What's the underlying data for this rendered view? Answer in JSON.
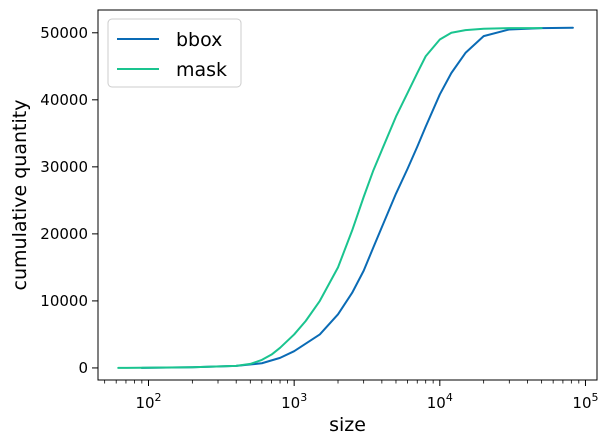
{
  "chart_data": {
    "type": "line",
    "xlabel": "size",
    "ylabel": "cumulative quantity",
    "xscale": "log",
    "xlim": [
      45,
      120000
    ],
    "ylim": [
      -1800,
      53400
    ],
    "grid": false,
    "legend_position": "top-left",
    "x_ticks": [
      {
        "value": 100,
        "base": "10",
        "exp": "2"
      },
      {
        "value": 1000,
        "base": "10",
        "exp": "3"
      },
      {
        "value": 10000,
        "base": "10",
        "exp": "4"
      },
      {
        "value": 100000,
        "base": "10",
        "exp": "5"
      }
    ],
    "y_ticks": [
      {
        "value": 0,
        "label": "0"
      },
      {
        "value": 10000,
        "label": "10000"
      },
      {
        "value": 20000,
        "label": "20000"
      },
      {
        "value": 30000,
        "label": "30000"
      },
      {
        "value": 40000,
        "label": "40000"
      },
      {
        "value": 50000,
        "label": "50000"
      }
    ],
    "series": [
      {
        "name": "bbox",
        "color": "#0a6bb5",
        "x": [
          90,
          200,
          400,
          600,
          800,
          1000,
          1500,
          2000,
          2500,
          3000,
          3500,
          4000,
          5000,
          6000,
          7000,
          8000,
          10000,
          12000,
          15000,
          20000,
          30000,
          50000,
          82000
        ],
        "y": [
          0,
          100,
          300,
          700,
          1500,
          2500,
          5000,
          8000,
          11200,
          14500,
          18000,
          21000,
          26000,
          29700,
          33000,
          36000,
          40800,
          44000,
          47000,
          49500,
          50500,
          50700,
          50750
        ]
      },
      {
        "name": "mask",
        "color": "#1ac48f",
        "x": [
          62,
          200,
          400,
          500,
          600,
          700,
          800,
          1000,
          1200,
          1500,
          2000,
          2500,
          3000,
          3500,
          4000,
          5000,
          6000,
          7000,
          8000,
          10000,
          12000,
          15000,
          20000,
          30000,
          50000
        ],
        "y": [
          0,
          100,
          300,
          600,
          1200,
          2000,
          3000,
          5000,
          7000,
          10000,
          15000,
          20500,
          25500,
          29500,
          32500,
          37500,
          41000,
          44000,
          46500,
          49000,
          50000,
          50400,
          50600,
          50700,
          50700
        ]
      }
    ]
  }
}
